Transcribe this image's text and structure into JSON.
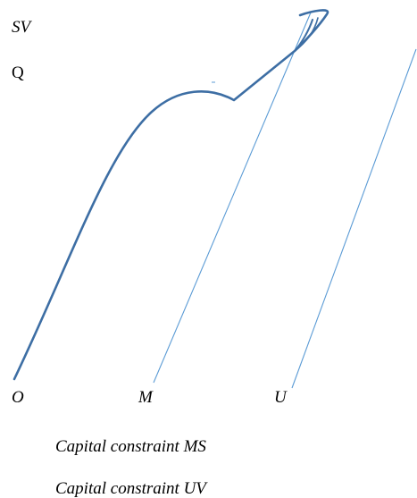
{
  "labels": {
    "sv": "SV",
    "q": "Q",
    "o": "O",
    "m": "M",
    "u": "U"
  },
  "captions": {
    "ms": "Capital constraint MS",
    "uv": "Capital constraint UV"
  },
  "colors": {
    "curve": "#3d6ea4",
    "constraint": "#5b9bd5",
    "text": "#000000"
  }
}
